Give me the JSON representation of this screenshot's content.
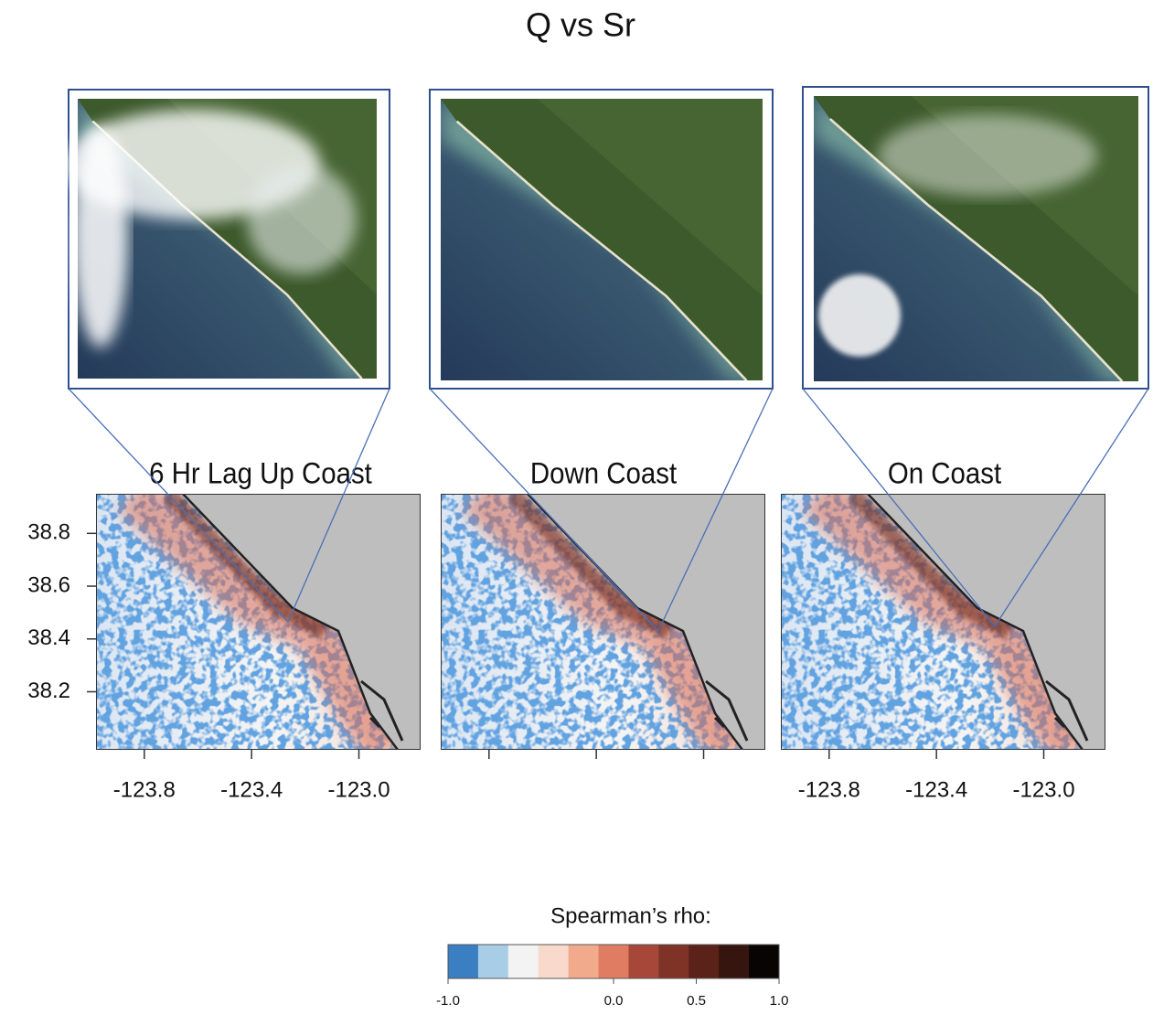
{
  "title": "Q vs Sr",
  "maps": {
    "panels": [
      {
        "title": "6 Hr Lag Up Coast",
        "x_labels": true,
        "y_labels": true
      },
      {
        "title": "Down Coast",
        "x_labels": false,
        "y_labels": false
      },
      {
        "title": "On Coast",
        "x_labels": true,
        "y_labels": false
      }
    ],
    "xlim": [
      -123.98,
      -122.77
    ],
    "ylim": [
      37.98,
      38.95
    ],
    "xticks": [
      -123.8,
      -123.4,
      {
        "value": -123.0,
        "label": "-123.0"
      }
    ],
    "yticks": [
      38.2,
      38.4,
      38.6,
      38.8
    ]
  },
  "colorbar": {
    "label": "Spearman’s rho:",
    "colors": [
      "#3a7fc2",
      "#a8cde6",
      "#f3f3f3",
      "#f8d9cc",
      "#f2aa8d",
      "#e07c62",
      "#a7473a",
      "#7e3326",
      "#5a2219",
      "#37150f",
      "#080404"
    ],
    "ticks": [
      {
        "value": -1.0,
        "label": "-1.0"
      },
      {
        "value": 0.0,
        "label": "0.0"
      },
      0.5,
      {
        "value": 1.0,
        "label": "1.0"
      }
    ]
  }
}
